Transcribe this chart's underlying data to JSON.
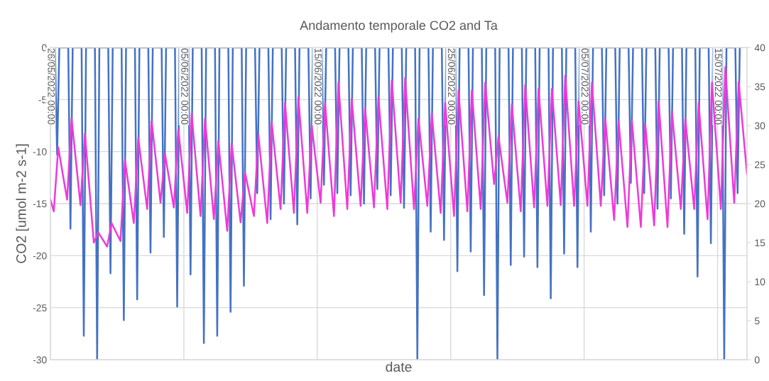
{
  "chart_data": {
    "type": "line",
    "title": "Andamento temporale CO2 and Ta",
    "xlabel": "date",
    "ylabel": "CO2 [umol m-2 s-1]",
    "xlim": [
      "2022-05-26T00:00",
      "2022-07-17T05:00"
    ],
    "xticks": [
      {
        "value": "2022-05-26",
        "label": "26/05/2022 00:00"
      },
      {
        "value": "2022-06-05",
        "label": "05/06/2022 00:00"
      },
      {
        "value": "2022-06-15",
        "label": "15/06/2022 00:00"
      },
      {
        "value": "2022-06-25",
        "label": "25/06/2022 00:00"
      },
      {
        "value": "2022-07-05",
        "label": "05/07/2022 00:00"
      },
      {
        "value": "2022-07-15",
        "label": "15/07/2022 00:00"
      }
    ],
    "ylim": [
      -30,
      0
    ],
    "yticks": [
      -30,
      -25,
      -20,
      -15,
      -10,
      -5,
      0
    ],
    "y2lim": [
      0,
      40
    ],
    "y2ticks": [
      0,
      5,
      10,
      15,
      20,
      25,
      30,
      35,
      40
    ],
    "grid": true,
    "series": [
      {
        "color": "#4472c4",
        "x": [
          "2022-05-26T08:00",
          "2022-05-26T12:00",
          "2022-05-26T16:00",
          "2022-05-27T08:00",
          "2022-05-27T12:00",
          "2022-05-27T16:00",
          "2022-05-28T08:00",
          "2022-05-28T12:00",
          "2022-05-28T16:00",
          "2022-05-29T08:00",
          "2022-05-29T12:00",
          "2022-05-29T16:00",
          "2022-05-30T08:00",
          "2022-05-30T12:00",
          "2022-05-30T16:00",
          "2022-05-31T08:00",
          "2022-05-31T12:00",
          "2022-05-31T16:00",
          "2022-06-01T08:00",
          "2022-06-01T12:00",
          "2022-06-01T16:00",
          "2022-06-02T08:00",
          "2022-06-02T12:00",
          "2022-06-02T16:00",
          "2022-06-03T08:00",
          "2022-06-03T12:00",
          "2022-06-03T16:00",
          "2022-06-04T08:00",
          "2022-06-04T12:00",
          "2022-06-04T16:00",
          "2022-06-05T08:00",
          "2022-06-05T12:00",
          "2022-06-05T16:00",
          "2022-06-06T08:00",
          "2022-06-06T12:00",
          "2022-06-06T16:00",
          "2022-06-07T08:00",
          "2022-06-07T12:00",
          "2022-06-07T16:00",
          "2022-06-08T08:00",
          "2022-06-08T12:00",
          "2022-06-08T16:00",
          "2022-06-09T08:00",
          "2022-06-09T12:00",
          "2022-06-09T16:00",
          "2022-06-10T08:00",
          "2022-06-10T12:00",
          "2022-06-10T16:00",
          "2022-06-11T08:00",
          "2022-06-11T12:00",
          "2022-06-11T16:00",
          "2022-06-12T08:00",
          "2022-06-12T12:00",
          "2022-06-12T16:00",
          "2022-06-13T08:00",
          "2022-06-13T12:00",
          "2022-06-13T16:00",
          "2022-06-14T08:00",
          "2022-06-14T12:00",
          "2022-06-14T16:00",
          "2022-06-15T08:00",
          "2022-06-15T12:00",
          "2022-06-15T16:00",
          "2022-06-16T08:00",
          "2022-06-16T12:00",
          "2022-06-16T16:00",
          "2022-06-17T08:00",
          "2022-06-17T12:00",
          "2022-06-17T16:00",
          "2022-06-18T08:00",
          "2022-06-18T12:00",
          "2022-06-18T16:00",
          "2022-06-19T08:00",
          "2022-06-19T12:00",
          "2022-06-19T16:00",
          "2022-06-20T08:00",
          "2022-06-20T12:00",
          "2022-06-20T16:00",
          "2022-06-21T08:00",
          "2022-06-21T12:00",
          "2022-06-21T16:00",
          "2022-06-22T08:00",
          "2022-06-22T12:00",
          "2022-06-22T16:00",
          "2022-06-23T08:00",
          "2022-06-23T12:00",
          "2022-06-23T16:00",
          "2022-06-24T08:00",
          "2022-06-24T12:00",
          "2022-06-24T16:00",
          "2022-06-25T08:00",
          "2022-06-25T12:00",
          "2022-06-25T16:00",
          "2022-06-26T08:00",
          "2022-06-26T12:00",
          "2022-06-26T16:00",
          "2022-06-27T08:00",
          "2022-06-27T12:00",
          "2022-06-27T16:00",
          "2022-06-28T08:00",
          "2022-06-28T12:00",
          "2022-06-28T16:00",
          "2022-06-29T08:00",
          "2022-06-29T12:00",
          "2022-06-29T16:00",
          "2022-06-30T08:00",
          "2022-06-30T12:00",
          "2022-06-30T16:00",
          "2022-07-01T08:00",
          "2022-07-01T12:00",
          "2022-07-01T16:00",
          "2022-07-02T08:00",
          "2022-07-02T12:00",
          "2022-07-02T16:00",
          "2022-07-03T08:00",
          "2022-07-03T12:00",
          "2022-07-03T16:00",
          "2022-07-04T08:00",
          "2022-07-04T12:00",
          "2022-07-04T16:00",
          "2022-07-05T08:00",
          "2022-07-05T12:00",
          "2022-07-05T16:00",
          "2022-07-06T08:00",
          "2022-07-06T12:00",
          "2022-07-06T16:00",
          "2022-07-07T08:00",
          "2022-07-07T12:00",
          "2022-07-07T16:00",
          "2022-07-08T08:00",
          "2022-07-08T12:00",
          "2022-07-08T16:00",
          "2022-07-09T08:00",
          "2022-07-09T12:00",
          "2022-07-09T16:00",
          "2022-07-10T08:00",
          "2022-07-10T12:00",
          "2022-07-10T16:00",
          "2022-07-11T08:00",
          "2022-07-11T12:00",
          "2022-07-11T16:00",
          "2022-07-12T08:00",
          "2022-07-12T12:00",
          "2022-07-12T16:00",
          "2022-07-13T08:00",
          "2022-07-13T12:00",
          "2022-07-13T16:00",
          "2022-07-14T08:00",
          "2022-07-14T12:00",
          "2022-07-14T16:00",
          "2022-07-15T08:00",
          "2022-07-15T12:00",
          "2022-07-15T16:00",
          "2022-07-16T08:00",
          "2022-07-16T12:00",
          "2022-07-16T16:00"
        ],
        "values": [
          0,
          -10.3,
          0,
          0,
          -17.4,
          0,
          0,
          -27.7,
          0,
          0,
          -30,
          0,
          0,
          -21.7,
          0,
          0,
          -26.2,
          0,
          0,
          -24.2,
          0,
          0,
          -19.7,
          0,
          0,
          -18.2,
          0,
          0,
          -24.9,
          0,
          0,
          -21.8,
          0,
          0,
          -28.4,
          0,
          0,
          -27.7,
          0,
          0,
          -25.4,
          0,
          0,
          -22.9,
          0,
          0,
          -14.0,
          0,
          0,
          -16.5,
          0,
          0,
          -15.0,
          0,
          0,
          -17.0,
          0,
          0,
          -14.5,
          0,
          0,
          -13.2,
          0,
          0,
          -14.0,
          0,
          0,
          -14.2,
          0,
          0,
          -15.0,
          0,
          0,
          -13.6,
          0,
          0,
          -14.2,
          0,
          0,
          -15.4,
          0,
          0,
          -30,
          0,
          0,
          -17.7,
          0,
          0,
          -18.5,
          0,
          0,
          -21.5,
          0,
          0,
          -19.6,
          0,
          0,
          -23.8,
          0,
          0,
          -30,
          0,
          0,
          -20.9,
          0,
          0,
          -20.1,
          0,
          0,
          -21.1,
          0,
          0,
          -24.1,
          0,
          0,
          -19.8,
          0,
          0,
          -21.1,
          0,
          0,
          -17.7,
          0,
          0,
          -14.2,
          0,
          0,
          -15.0,
          0,
          0,
          -13.0,
          0,
          0,
          -14.0,
          0,
          0,
          -15.5,
          0,
          0,
          -14.5,
          0,
          0,
          -17.9,
          0,
          0,
          -22.0,
          0,
          0,
          -18.8,
          0,
          0,
          -30,
          0,
          0,
          -14.0,
          0
        ]
      },
      {
        "color": "#ee3ad8",
        "axis": "y2",
        "x": [
          "2022-05-26T00:00",
          "2022-05-26T06:00",
          "2022-05-26T14:00",
          "2022-05-27T06:00",
          "2022-05-27T14:00",
          "2022-05-28T06:00",
          "2022-05-28T14:00",
          "2022-05-29T06:00",
          "2022-05-29T14:00",
          "2022-05-30T06:00",
          "2022-05-30T14:00",
          "2022-05-31T06:00",
          "2022-05-31T14:00",
          "2022-06-01T06:00",
          "2022-06-01T14:00",
          "2022-06-02T06:00",
          "2022-06-02T14:00",
          "2022-06-03T06:00",
          "2022-06-03T14:00",
          "2022-06-04T06:00",
          "2022-06-04T14:00",
          "2022-06-05T06:00",
          "2022-06-05T14:00",
          "2022-06-06T06:00",
          "2022-06-06T14:00",
          "2022-06-07T06:00",
          "2022-06-07T14:00",
          "2022-06-08T06:00",
          "2022-06-08T14:00",
          "2022-06-09T06:00",
          "2022-06-09T14:00",
          "2022-06-10T06:00",
          "2022-06-10T14:00",
          "2022-06-11T06:00",
          "2022-06-11T14:00",
          "2022-06-12T06:00",
          "2022-06-12T14:00",
          "2022-06-13T06:00",
          "2022-06-13T14:00",
          "2022-06-14T06:00",
          "2022-06-14T14:00",
          "2022-06-15T06:00",
          "2022-06-15T14:00",
          "2022-06-16T06:00",
          "2022-06-16T14:00",
          "2022-06-17T06:00",
          "2022-06-17T14:00",
          "2022-06-18T06:00",
          "2022-06-18T14:00",
          "2022-06-19T06:00",
          "2022-06-19T14:00",
          "2022-06-20T06:00",
          "2022-06-20T14:00",
          "2022-06-21T06:00",
          "2022-06-21T14:00",
          "2022-06-22T06:00",
          "2022-06-22T14:00",
          "2022-06-23T06:00",
          "2022-06-23T14:00",
          "2022-06-24T06:00",
          "2022-06-24T14:00",
          "2022-06-25T06:00",
          "2022-06-25T14:00",
          "2022-06-26T06:00",
          "2022-06-26T14:00",
          "2022-06-27T06:00",
          "2022-06-27T14:00",
          "2022-06-28T06:00",
          "2022-06-28T14:00",
          "2022-06-29T06:00",
          "2022-06-29T14:00",
          "2022-06-30T06:00",
          "2022-06-30T14:00",
          "2022-07-01T06:00",
          "2022-07-01T14:00",
          "2022-07-02T06:00",
          "2022-07-02T14:00",
          "2022-07-03T06:00",
          "2022-07-03T14:00",
          "2022-07-04T06:00",
          "2022-07-04T14:00",
          "2022-07-05T06:00",
          "2022-07-05T14:00",
          "2022-07-06T06:00",
          "2022-07-06T14:00",
          "2022-07-07T06:00",
          "2022-07-07T14:00",
          "2022-07-08T06:00",
          "2022-07-08T14:00",
          "2022-07-09T06:00",
          "2022-07-09T14:00",
          "2022-07-10T06:00",
          "2022-07-10T14:00",
          "2022-07-11T06:00",
          "2022-07-11T14:00",
          "2022-07-12T06:00",
          "2022-07-12T14:00",
          "2022-07-13T06:00",
          "2022-07-13T14:00",
          "2022-07-14T06:00",
          "2022-07-14T14:00",
          "2022-07-15T06:00",
          "2022-07-15T14:00",
          "2022-07-16T06:00",
          "2022-07-16T14:00",
          "2022-07-17T05:00"
        ],
        "values": [
          20.5,
          19.0,
          27.2,
          20.5,
          30.9,
          19.8,
          29.0,
          15.0,
          16.3,
          14.5,
          17.5,
          15.2,
          25.6,
          17.5,
          28.4,
          19.3,
          30.6,
          20.1,
          26.4,
          19.5,
          29.5,
          18.8,
          31.5,
          18.4,
          30.9,
          18.0,
          28.0,
          16.5,
          27.7,
          17.6,
          24.0,
          18.4,
          28.8,
          17.5,
          30.4,
          19.3,
          32.9,
          18.8,
          33.6,
          18.8,
          30.0,
          20.1,
          32.9,
          18.4,
          35.5,
          19.3,
          33.4,
          19.7,
          32.2,
          19.5,
          33.6,
          19.3,
          35.8,
          20.1,
          36.1,
          19.3,
          30.9,
          19.7,
          31.5,
          18.8,
          32.9,
          18.4,
          34.5,
          19.0,
          34.5,
          19.3,
          35.5,
          22.5,
          28.6,
          20.1,
          32.7,
          19.0,
          35.2,
          19.5,
          34.7,
          19.7,
          34.7,
          19.8,
          36.4,
          19.7,
          33.1,
          19.7,
          35.5,
          19.7,
          30.9,
          17.9,
          30.6,
          17.0,
          30.6,
          17.0,
          30.2,
          17.2,
          33.1,
          17.0,
          31.8,
          19.3,
          30.9,
          19.3,
          32.9,
          18.0,
          35.5,
          19.3,
          37.5,
          20.1,
          35.6,
          23.8
        ]
      }
    ]
  }
}
